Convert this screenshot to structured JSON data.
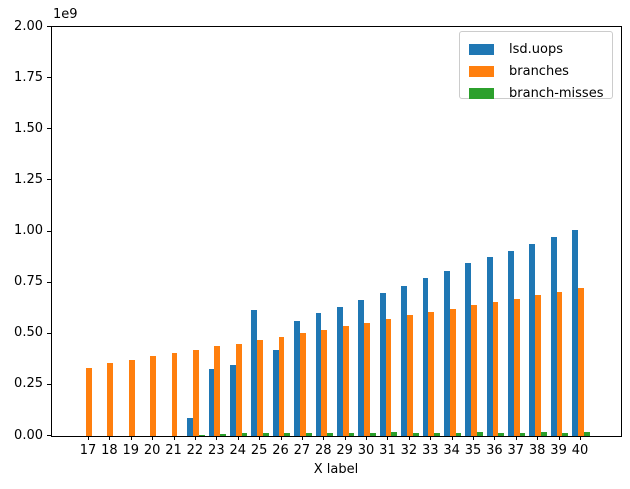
{
  "figure": {
    "offset_text": "1e9",
    "background": "#ffffff"
  },
  "chart_data": {
    "type": "bar",
    "title": "",
    "xlabel": "X label",
    "ylabel": "",
    "y_multiplier": "1e9",
    "ylim": [
      0,
      2.0
    ],
    "yticks": [
      "0.00",
      "0.25",
      "0.50",
      "0.75",
      "1.00",
      "1.25",
      "1.50",
      "1.75",
      "2.00"
    ],
    "grid": false,
    "legend_position": "upper right",
    "categories": [
      "17",
      "18",
      "19",
      "20",
      "21",
      "22",
      "23",
      "24",
      "25",
      "26",
      "27",
      "28",
      "29",
      "30",
      "31",
      "32",
      "33",
      "34",
      "35",
      "36",
      "37",
      "38",
      "39",
      "40"
    ],
    "series": [
      {
        "name": "lsd.uops",
        "color": "#1f77b4",
        "values_1e9": [
          0,
          0,
          0,
          0,
          0,
          0.09,
          0.33,
          0.345,
          0.615,
          0.42,
          0.56,
          0.6,
          0.63,
          0.665,
          0.7,
          0.735,
          0.775,
          0.805,
          0.845,
          0.875,
          0.905,
          0.94,
          0.975,
          1.005
        ]
      },
      {
        "name": "branches",
        "color": "#ff7f0e",
        "values_1e9": [
          0.335,
          0.355,
          0.37,
          0.39,
          0.405,
          0.42,
          0.44,
          0.45,
          0.47,
          0.485,
          0.505,
          0.52,
          0.54,
          0.555,
          0.57,
          0.59,
          0.605,
          0.62,
          0.64,
          0.655,
          0.67,
          0.69,
          0.705,
          0.725
        ]
      },
      {
        "name": "branch-misses",
        "color": "#2ca02c",
        "values_1e9": [
          0,
          0,
          0,
          0,
          0,
          0.005,
          0.012,
          0.013,
          0.014,
          0.013,
          0.016,
          0.016,
          0.017,
          0.015,
          0.018,
          0.016,
          0.017,
          0.015,
          0.018,
          0.016,
          0.017,
          0.018,
          0.015,
          0.02
        ]
      }
    ]
  }
}
